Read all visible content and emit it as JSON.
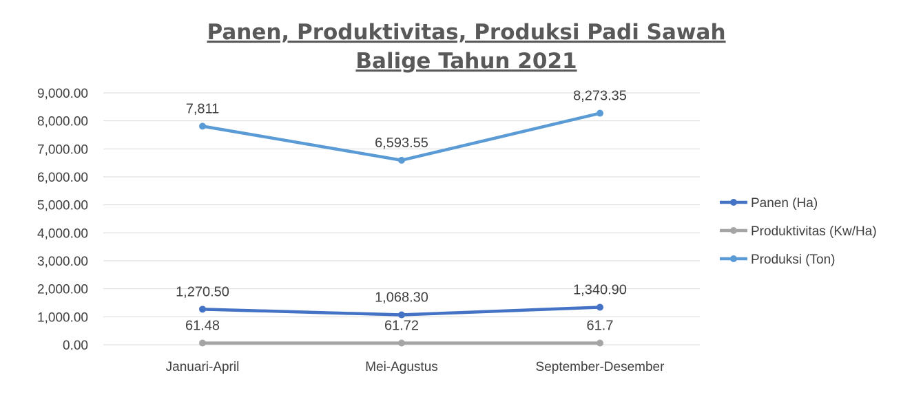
{
  "chart_data": {
    "type": "line",
    "title_lines": [
      "Panen, Produktivitas, Produksi Padi Sawah",
      "Balige Tahun 2021"
    ],
    "xlabel": "",
    "ylabel": "",
    "categories": [
      "Januari-April",
      "Mei-Agustus",
      "September-Desember"
    ],
    "ylim": [
      0,
      9000
    ],
    "yticks": [
      0,
      1000,
      2000,
      3000,
      4000,
      5000,
      6000,
      7000,
      8000,
      9000
    ],
    "ytick_labels": [
      "0.00",
      "1,000.00",
      "2,000.00",
      "3,000.00",
      "4,000.00",
      "5,000.00",
      "6,000.00",
      "7,000.00",
      "8,000.00",
      "9,000.00"
    ],
    "grid": true,
    "legend_position": "right",
    "series": [
      {
        "name": "Panen (Ha)",
        "values": [
          1270.5,
          1068.3,
          1340.9
        ],
        "labels": [
          "1,270.50",
          "1,068.30",
          "1,340.90"
        ],
        "color": "#4472c4"
      },
      {
        "name": "Produktivitas (Kw/Ha)",
        "values": [
          61.48,
          61.72,
          61.7
        ],
        "labels": [
          "61.48",
          "61.72",
          "61.7"
        ],
        "color": "#a5a5a5"
      },
      {
        "name": "Produksi (Ton)",
        "values": [
          7811,
          6593.55,
          8273.35
        ],
        "labels": [
          "7,811",
          "6,593.55",
          "8,273.35"
        ],
        "color": "#5b9bd5"
      }
    ]
  }
}
